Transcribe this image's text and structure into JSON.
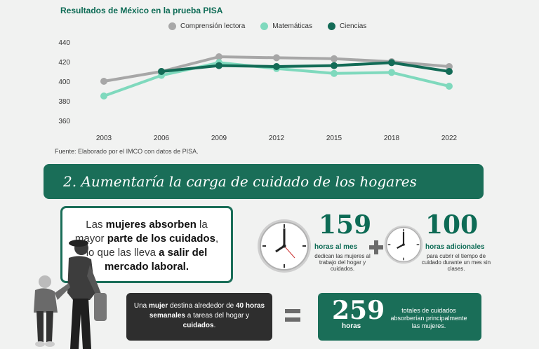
{
  "chart_data": {
    "type": "line",
    "title": "Resultados de México en la prueba PISA",
    "x": [
      "2003",
      "2006",
      "2009",
      "2012",
      "2015",
      "2018",
      "2022"
    ],
    "series": [
      {
        "name": "Comprensión lectora",
        "color": "#a7a7a7",
        "values": [
          400,
          410,
          425,
          424,
          423,
          420,
          415
        ]
      },
      {
        "name": "Matemáticas",
        "color": "#7fd9bd",
        "values": [
          385,
          406,
          419,
          413,
          408,
          409,
          395
        ]
      },
      {
        "name": "Ciencias",
        "color": "#136b56",
        "values": [
          null,
          410,
          416,
          415,
          416,
          419,
          410
        ]
      }
    ],
    "ylim": [
      360,
      440
    ],
    "yticks": [
      360,
      380,
      400,
      420,
      440
    ],
    "grid": false,
    "legend": "top",
    "source": "Fuente: Elaborado por el IMCO con datos de PISA."
  },
  "section": {
    "title": "2. Aumentaría la carga de cuidado de los hogares"
  },
  "women_box": {
    "t1": "Las ",
    "b1": "mujeres absorben",
    "t2": " la mayor ",
    "b2": "parte de los cuidados",
    "t3": ", lo que las lleva ",
    "b3": "a salir del mercado laboral."
  },
  "stat159": {
    "number": "159",
    "unit": "horas al mes",
    "desc": "dedican las mujeres al trabajo del hogar y cuidados."
  },
  "stat100": {
    "number": "100",
    "unit": "horas adicionales",
    "desc": "para cubrir el tiempo de cuidado durante un mes sin clases."
  },
  "week_box": {
    "t1": "Una ",
    "b1": "mujer",
    "t2": " destina alrededor de ",
    "b2": "40 horas semanales",
    "t3": " a tareas del hogar y ",
    "b3": "cuidados",
    "t4": "."
  },
  "total": {
    "number": "259",
    "unit": "horas",
    "desc": "totales de cuidados absorberían principalmente las mujeres."
  },
  "icons": [
    "clock-icon",
    "clock-icon",
    "plus-icon",
    "equals-icon",
    "mother-child-photo"
  ]
}
